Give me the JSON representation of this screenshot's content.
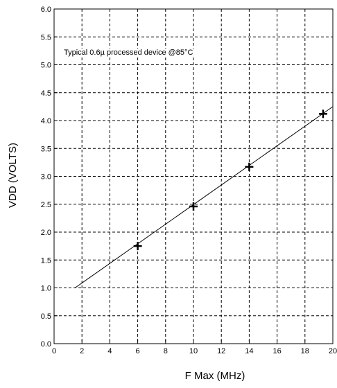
{
  "chart_data": {
    "type": "scatter",
    "xlabel": "F Max (MHz)",
    "ylabel": "VDD (VOLTS)",
    "xlim": [
      0,
      20
    ],
    "ylim": [
      0.0,
      6.0
    ],
    "x_ticks": [
      "0",
      "2",
      "4",
      "6",
      "8",
      "10",
      "12",
      "14",
      "16",
      "18",
      "20"
    ],
    "y_ticks": [
      "0.0",
      "0.5",
      "1.0",
      "1.5",
      "2.0",
      "2.5",
      "3.0",
      "3.5",
      "4.0",
      "4.5",
      "5.0",
      "5.5",
      "6.0"
    ],
    "grid": true,
    "grid_style": "dashed",
    "annotation": "Typical 0.6µ processed device @85°C",
    "points": [
      {
        "x": 6.0,
        "y": 1.75
      },
      {
        "x": 10.0,
        "y": 2.46
      },
      {
        "x": 14.0,
        "y": 3.17
      },
      {
        "x": 19.3,
        "y": 4.12
      }
    ],
    "fit_line": {
      "x": [
        1.5,
        20.0
      ],
      "y": [
        1.0,
        4.25
      ]
    }
  }
}
